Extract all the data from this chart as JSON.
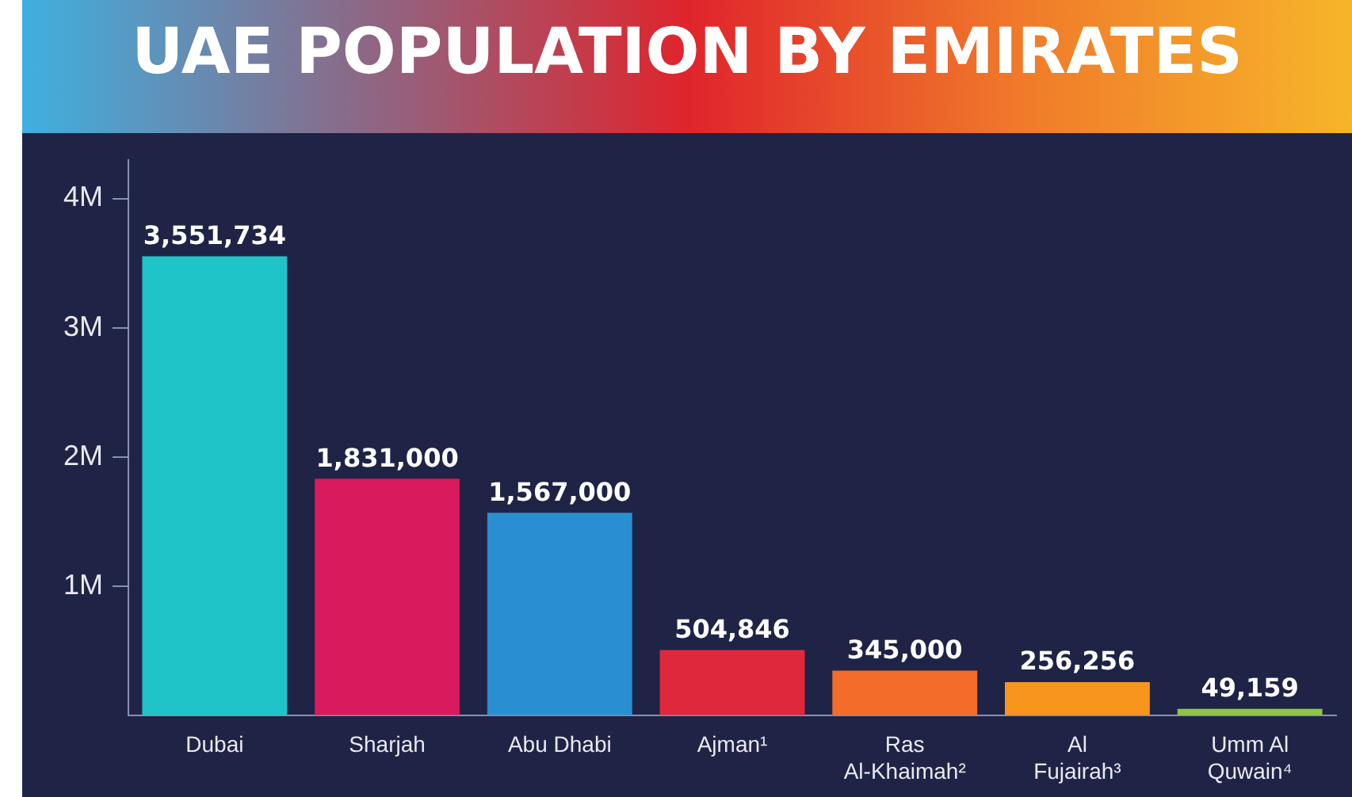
{
  "chart_data": {
    "type": "bar",
    "title": "UAE POPULATION BY EMIRATES",
    "categories": [
      "Dubai",
      "Sharjah",
      "Abu Dhabi",
      "Ajman¹",
      "Ras Al-Khaimah²",
      "Al Fujairah³",
      "Umm Al Quwain⁴"
    ],
    "values": [
      3551734,
      1831000,
      1567000,
      504846,
      345000,
      256256,
      49159
    ],
    "value_labels": [
      "3,551,734",
      "1,831,000",
      "1,567,000",
      "504,846",
      "345,000",
      "256,256",
      "49,159"
    ],
    "colors": [
      "#1fc4c8",
      "#d91a5c",
      "#2a8fd2",
      "#e0283c",
      "#f36c2a",
      "#f7951d",
      "#8dc63f"
    ],
    "ylim": [
      0,
      4300000
    ],
    "yticks": [
      {
        "value": 1000000,
        "label": "1M"
      },
      {
        "value": 2000000,
        "label": "2M"
      },
      {
        "value": 3000000,
        "label": "3M"
      },
      {
        "value": 4000000,
        "label": "4M"
      }
    ],
    "grid": false,
    "legend": false
  }
}
